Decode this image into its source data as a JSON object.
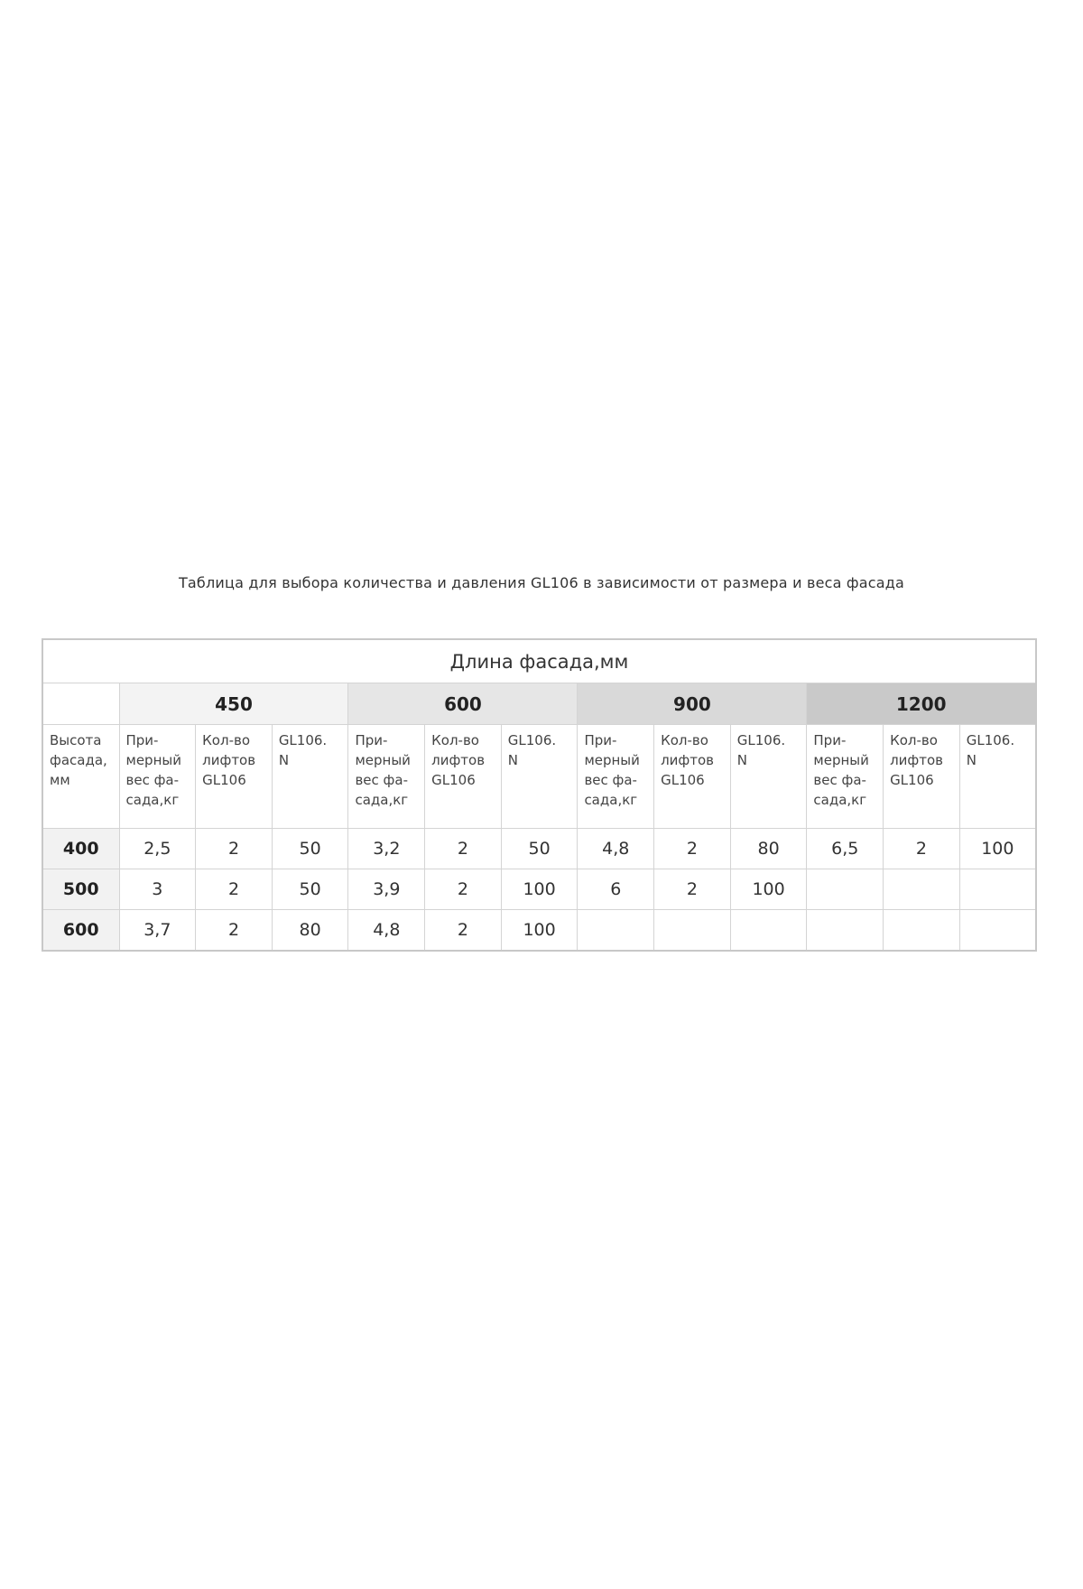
{
  "caption": "Таблица для выбора количества и давления GL106 в зависимости от размера и веса фасада",
  "table": {
    "title": "Длина фасада,мм",
    "groups": [
      "450",
      "600",
      "900",
      "1200"
    ],
    "group_colors": [
      "#f3f3f3",
      "#e6e6e6",
      "#d9d9d9",
      "#c9c9c9"
    ],
    "row_header": "Высота\nфасада,\nмм",
    "sub_headers": [
      "При-\nмерный\nвес фа-\nсада,кг",
      "Кол-во\nлифтов\nGL106",
      "GL106.\nN"
    ],
    "rows": [
      {
        "height": "400",
        "cells": [
          "2,5",
          "2",
          "50",
          "3,2",
          "2",
          "50",
          "4,8",
          "2",
          "80",
          "6,5",
          "2",
          "100"
        ]
      },
      {
        "height": "500",
        "cells": [
          "3",
          "2",
          "50",
          "3,9",
          "2",
          "100",
          "6",
          "2",
          "100",
          "",
          "",
          ""
        ]
      },
      {
        "height": "600",
        "cells": [
          "3,7",
          "2",
          "80",
          "4,8",
          "2",
          "100",
          "",
          "",
          "",
          "",
          "",
          ""
        ]
      }
    ]
  }
}
